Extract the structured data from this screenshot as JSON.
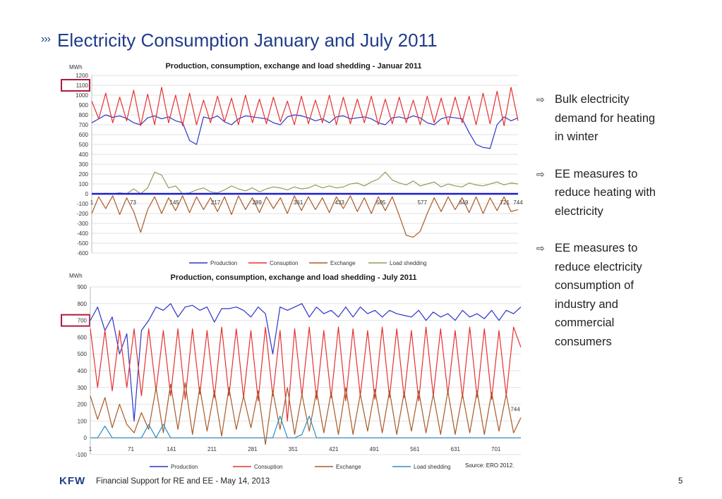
{
  "slide": {
    "title": "Electricity Consumption January and July 2011",
    "bullets": [
      "Bulk electricity demand for heating in winter",
      "EE measures to reduce heating with electricity",
      "EE measures to reduce electricity consumption of industry and commercial consumers"
    ],
    "source": "Source: ERO 2012.",
    "footer_logo": "KFW",
    "footer_text": "Financial Support for RE and EE - May 14, 2013",
    "page_number": "5",
    "colors": {
      "title": "#1f3c8c",
      "highlight_box": "#b0193f"
    }
  },
  "chart_data": [
    {
      "type": "line",
      "title": "Production, consumption, exchange and load shedding - Januar 2011",
      "ylabel": "MWh",
      "ylim": [
        -600,
        1200
      ],
      "ytick_step": 100,
      "xlim": [
        1,
        744
      ],
      "xticks": [
        1,
        73,
        145,
        217,
        289,
        361,
        433,
        505,
        577,
        649,
        721,
        744
      ],
      "highlighted_ytick": 1100,
      "grid": true,
      "legend_position": "bottom",
      "series": [
        {
          "name": "Production",
          "color": "#2b35c8",
          "values": [
            720,
            760,
            800,
            775,
            790,
            765,
            720,
            700,
            770,
            790,
            760,
            780,
            740,
            720,
            540,
            500,
            780,
            760,
            790,
            730,
            700,
            760,
            790,
            780,
            770,
            760,
            720,
            700,
            780,
            800,
            790,
            770,
            740,
            760,
            720,
            780,
            790,
            760,
            770,
            780,
            760,
            720,
            700,
            770,
            780,
            760,
            790,
            770,
            720,
            700,
            760,
            780,
            770,
            760,
            620,
            500,
            470,
            460,
            700,
            780,
            740,
            770
          ]
        },
        {
          "name": "Consuption",
          "color": "#e53131",
          "values": [
            940,
            760,
            1020,
            720,
            980,
            740,
            1050,
            690,
            1010,
            700,
            1080,
            720,
            1000,
            690,
            1020,
            700,
            950,
            720,
            990,
            730,
            970,
            700,
            1000,
            720,
            960,
            710,
            980,
            730,
            940,
            700,
            990,
            710,
            950,
            720,
            1000,
            700,
            980,
            710,
            960,
            720,
            990,
            700,
            960,
            710,
            980,
            720,
            950,
            700,
            990,
            720,
            970,
            700,
            980,
            720,
            990,
            700,
            1020,
            710,
            1040,
            690,
            1080,
            740
          ]
        },
        {
          "name": "Exchange",
          "color": "#a85a28",
          "values": [
            -200,
            -30,
            -150,
            -20,
            -210,
            -40,
            -180,
            -390,
            -160,
            -30,
            -200,
            -40,
            -170,
            -20,
            -190,
            -30,
            -160,
            -40,
            -180,
            -30,
            -210,
            -20,
            -160,
            -40,
            -190,
            -30,
            -150,
            -40,
            -200,
            -20,
            -170,
            -30,
            -160,
            -40,
            -190,
            -30,
            -150,
            -20,
            -180,
            -40,
            -200,
            -30,
            -170,
            -30,
            -220,
            -420,
            -440,
            -380,
            -200,
            -40,
            -180,
            -30,
            -160,
            -40,
            -190,
            -30,
            -200,
            -40,
            -170,
            -30,
            -180,
            -160
          ]
        },
        {
          "name": "Load shedding",
          "color": "#8aa05a",
          "values": [
            0,
            0,
            5,
            0,
            10,
            0,
            50,
            0,
            60,
            220,
            190,
            60,
            80,
            0,
            10,
            40,
            60,
            20,
            10,
            40,
            80,
            50,
            30,
            60,
            20,
            50,
            70,
            60,
            40,
            70,
            50,
            60,
            90,
            60,
            80,
            60,
            70,
            100,
            110,
            80,
            120,
            150,
            220,
            140,
            110,
            90,
            130,
            80,
            100,
            120,
            70,
            100,
            80,
            70,
            110,
            90,
            80,
            100,
            120,
            90,
            110,
            100
          ]
        },
        {
          "name": "",
          "color": "#1c1cd6",
          "values": [
            0,
            0
          ]
        }
      ]
    },
    {
      "type": "line",
      "title": "Production, consumption, exchange and load shedding - July 2011",
      "ylabel": "MWh",
      "ylim": [
        -100,
        900
      ],
      "ytick_step": 100,
      "xlim": [
        1,
        744
      ],
      "xticks": [
        1,
        71,
        141,
        211,
        281,
        351,
        421,
        491,
        561,
        631,
        701
      ],
      "end_label": "744",
      "highlighted_ytick": 700,
      "grid": true,
      "legend_position": "bottom",
      "series": [
        {
          "name": "Production",
          "color": "#2b35c8",
          "values": [
            700,
            780,
            640,
            720,
            500,
            620,
            100,
            640,
            700,
            780,
            760,
            800,
            720,
            780,
            790,
            760,
            780,
            690,
            770,
            770,
            780,
            760,
            720,
            780,
            740,
            500,
            780,
            760,
            780,
            800,
            720,
            780,
            740,
            760,
            720,
            780,
            720,
            780,
            740,
            760,
            720,
            760,
            740,
            730,
            720,
            760,
            700,
            750,
            720,
            740,
            700,
            760,
            720,
            740,
            710,
            760,
            700,
            760,
            740,
            780
          ]
        },
        {
          "name": "Consuption",
          "color": "#e53131",
          "values": [
            650,
            300,
            640,
            280,
            640,
            300,
            650,
            250,
            650,
            280,
            640,
            250,
            650,
            230,
            650,
            260,
            640,
            240,
            660,
            250,
            650,
            240,
            640,
            220,
            660,
            250,
            640,
            100,
            650,
            250,
            660,
            230,
            640,
            240,
            660,
            220,
            650,
            250,
            640,
            230,
            660,
            240,
            650,
            240,
            640,
            220,
            660,
            250,
            650,
            260,
            640,
            240,
            660,
            240,
            650,
            230,
            640,
            250,
            660,
            540
          ]
        },
        {
          "name": "Exchange",
          "color": "#a85a28",
          "values": [
            250,
            110,
            240,
            60,
            200,
            80,
            30,
            150,
            50,
            300,
            30,
            320,
            50,
            330,
            20,
            300,
            40,
            280,
            10,
            300,
            50,
            250,
            60,
            280,
            -40,
            280,
            50,
            300,
            20,
            260,
            40,
            280,
            30,
            270,
            20,
            300,
            20,
            260,
            40,
            290,
            30,
            280,
            20,
            270,
            40,
            280,
            30,
            260,
            20,
            280,
            20,
            260,
            30,
            280,
            20,
            270,
            40,
            260,
            30,
            120
          ]
        },
        {
          "name": "Load shedding",
          "color": "#2b8fc8",
          "values": [
            0,
            0,
            70,
            0,
            0,
            0,
            0,
            0,
            80,
            0,
            80,
            0,
            0,
            0,
            0,
            0,
            0,
            0,
            0,
            0,
            0,
            0,
            0,
            0,
            0,
            0,
            130,
            0,
            0,
            20,
            130,
            0,
            0,
            0,
            0,
            0,
            0,
            0,
            0,
            0,
            0,
            0,
            0,
            0,
            0,
            0,
            0,
            0,
            0,
            0,
            0,
            0,
            0,
            0,
            0,
            0,
            0,
            0,
            0,
            0
          ]
        }
      ]
    }
  ]
}
